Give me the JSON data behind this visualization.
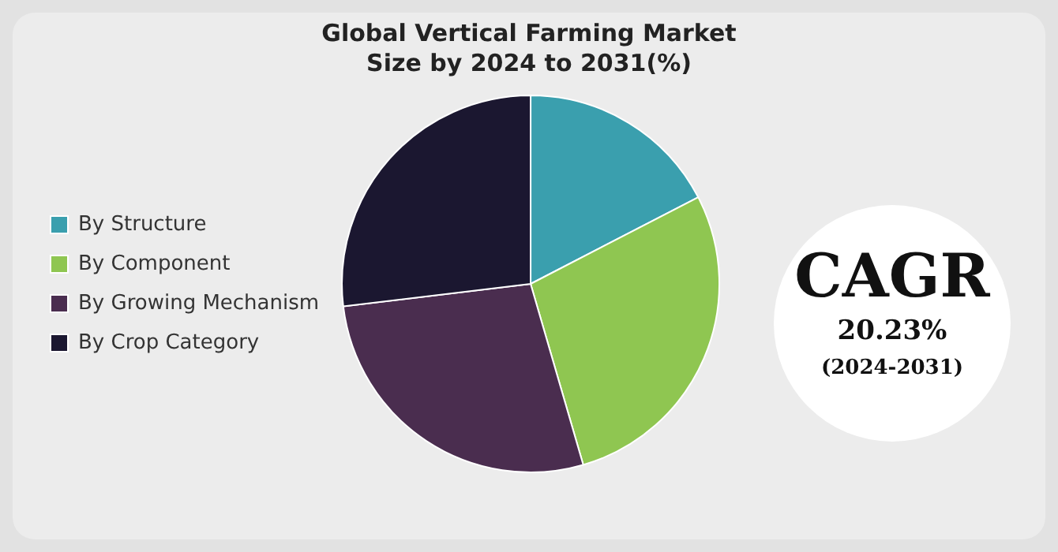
{
  "chart_data": {
    "type": "pie",
    "title": "Global Vertical Farming Market Size by 2024 to 2031(%)",
    "categories": [
      "By Structure",
      "By Component",
      "By Growing Mechanism",
      "By Crop Category"
    ],
    "values": [
      17.4,
      28.1,
      27.6,
      26.9
    ],
    "colors": [
      "#3a9fae",
      "#8fc651",
      "#4a2d4f",
      "#1b1730"
    ],
    "legend": "left",
    "annotations": [
      "CAGR",
      "20.23%",
      "(2024-2031)"
    ]
  }
}
